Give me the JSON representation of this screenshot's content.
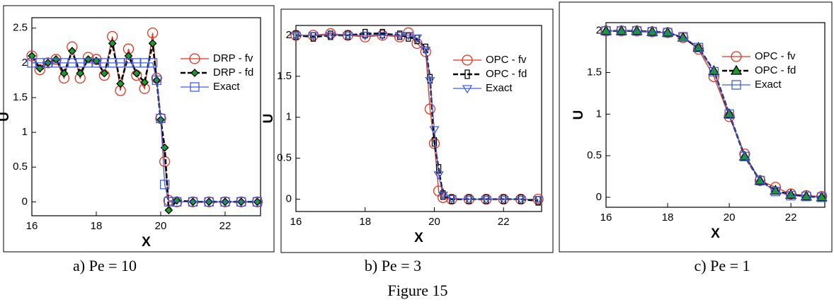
{
  "chart_data": [
    {
      "type": "line",
      "caption": "a) Pe = 10",
      "xlabel": "X",
      "ylabel": "U",
      "x": [
        16,
        16.25,
        16.5,
        16.75,
        17,
        17.25,
        17.5,
        17.75,
        18,
        18.25,
        18.5,
        18.75,
        19,
        19.25,
        19.5,
        19.75,
        19.875,
        20,
        20.125,
        20.25,
        20.5,
        21,
        21.5,
        22,
        22.5,
        23
      ],
      "series": [
        {
          "name": "DRP - fv",
          "color": "#e8311a",
          "marker": "circle",
          "dashed": false,
          "values": [
            2.1,
            1.9,
            2.0,
            2.05,
            1.78,
            2.23,
            1.78,
            2.08,
            2.05,
            1.82,
            2.38,
            1.6,
            2.2,
            1.82,
            1.63,
            2.43,
            1.78,
            1.2,
            0.58,
            0.02,
            0.0,
            0.0,
            0.0,
            0.0,
            0.0,
            0.0
          ]
        },
        {
          "name": "DRP - fd",
          "color": "#000000",
          "marker": "diamond",
          "marker_fill": "#1a9c2e",
          "dashed": true,
          "values": [
            2.1,
            1.92,
            2.0,
            2.05,
            1.85,
            2.17,
            1.85,
            2.05,
            2.03,
            1.85,
            2.28,
            1.7,
            2.1,
            1.85,
            1.72,
            2.28,
            1.75,
            1.18,
            0.78,
            -0.12,
            0.02,
            0.0,
            0.0,
            0.0,
            0.0,
            0.0
          ]
        },
        {
          "name": "Exact",
          "color": "#3f5fe0",
          "marker": "square",
          "dashed": false,
          "values": [
            2,
            2,
            2,
            2,
            2,
            2,
            2,
            2,
            2,
            2,
            2,
            2,
            2,
            2,
            2,
            2,
            1.75,
            1.2,
            0.25,
            0,
            0,
            0,
            0,
            0,
            0,
            0
          ]
        }
      ],
      "xlim": [
        16,
        23.1
      ],
      "ylim": [
        -0.2,
        2.65
      ],
      "xticks": [
        16,
        18,
        20,
        22
      ],
      "yticks": [
        0,
        0.5,
        1,
        1.5,
        2,
        2.5
      ]
    },
    {
      "type": "line",
      "caption": "b) Pe = 3",
      "xlabel": "X",
      "ylabel": "U",
      "x": [
        16,
        16.5,
        17,
        17.5,
        18,
        18.5,
        19,
        19.25,
        19.5,
        19.75,
        19.875,
        20,
        20.125,
        20.25,
        20.5,
        21,
        21.5,
        22,
        22.5,
        23
      ],
      "series": [
        {
          "name": "OPC - fv",
          "color": "#e8311a",
          "marker": "circle",
          "dashed": false,
          "values": [
            2.0,
            2.0,
            2.02,
            2.0,
            1.98,
            2.0,
            1.98,
            2.03,
            1.9,
            1.8,
            1.1,
            0.68,
            0.1,
            0.02,
            0.0,
            0.0,
            0.0,
            0.0,
            0.0,
            0.0
          ]
        },
        {
          "name": "OPC - fd",
          "color": "#000000",
          "marker": "plus",
          "dashed": true,
          "values": [
            2.0,
            1.98,
            2.0,
            2.0,
            2.02,
            2.02,
            2.0,
            1.98,
            1.95,
            1.84,
            1.47,
            0.7,
            0.37,
            0.05,
            0.0,
            0.0,
            0.0,
            0.0,
            0.0,
            -0.02
          ]
        },
        {
          "name": "Exact",
          "color": "#3f5fe0",
          "marker": "triangle-down",
          "dashed": false,
          "values": [
            2,
            2,
            2,
            2,
            2,
            2,
            2,
            2,
            1.97,
            1.82,
            1.45,
            0.85,
            0.3,
            0.05,
            0.01,
            0,
            0,
            0,
            0,
            0
          ]
        }
      ],
      "xlim": [
        16,
        23.1
      ],
      "ylim": [
        -0.15,
        2.12
      ],
      "xticks": [
        16,
        18,
        20,
        22
      ],
      "yticks": [
        0,
        0.5,
        1,
        1.5,
        2
      ]
    },
    {
      "type": "line",
      "caption": "c) Pe = 1",
      "xlabel": "X",
      "ylabel": "U",
      "x": [
        16,
        16.5,
        17,
        17.5,
        18,
        18.5,
        19,
        19.5,
        20,
        20.5,
        21,
        21.5,
        22,
        22.5,
        23
      ],
      "series": [
        {
          "name": "OPC - fv",
          "color": "#e8311a",
          "marker": "circle",
          "dashed": false,
          "values": [
            2.0,
            2.0,
            2.0,
            1.99,
            1.98,
            1.92,
            1.78,
            1.45,
            0.97,
            0.52,
            0.2,
            0.12,
            0.04,
            0.02,
            0.01
          ]
        },
        {
          "name": "OPC - fd",
          "color": "#000000",
          "marker": "triangle",
          "marker_fill": "#1a9c2e",
          "dashed": true,
          "values": [
            2.0,
            2.0,
            2.0,
            1.99,
            1.98,
            1.92,
            1.8,
            1.52,
            1.0,
            0.49,
            0.2,
            0.08,
            0.03,
            0.01,
            0.0
          ]
        },
        {
          "name": "Exact",
          "color": "#3f5fe0",
          "marker": "square",
          "dashed": false,
          "values": [
            2.0,
            2.0,
            2.0,
            1.99,
            1.98,
            1.93,
            1.8,
            1.51,
            1.0,
            0.49,
            0.2,
            0.07,
            0.02,
            0.01,
            0.0
          ]
        }
      ],
      "xlim": [
        16,
        23.1
      ],
      "ylim": [
        -0.12,
        2.1
      ],
      "xticks": [
        16,
        18,
        20,
        22
      ],
      "yticks": [
        0,
        0.5,
        1,
        1.5,
        2
      ]
    }
  ],
  "figure_caption": "Figure 15"
}
